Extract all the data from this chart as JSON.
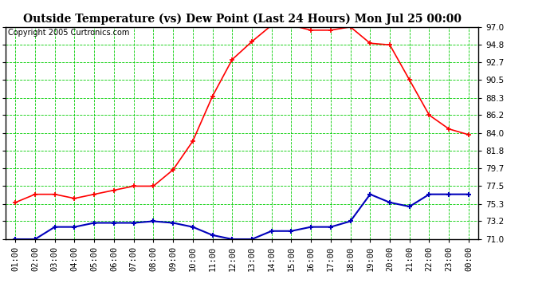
{
  "title": "Outside Temperature (vs) Dew Point (Last 24 Hours) Mon Jul 25 00:00",
  "copyright": "Copyright 2005 Curtronics.com",
  "x_labels": [
    "01:00",
    "02:00",
    "03:00",
    "04:00",
    "05:00",
    "06:00",
    "07:00",
    "08:00",
    "09:00",
    "10:00",
    "11:00",
    "12:00",
    "13:00",
    "14:00",
    "15:00",
    "16:00",
    "17:00",
    "18:00",
    "19:00",
    "20:00",
    "21:00",
    "22:00",
    "23:00",
    "00:00"
  ],
  "temp_red": [
    75.5,
    76.5,
    76.5,
    76.0,
    76.5,
    77.0,
    77.5,
    77.5,
    79.5,
    83.0,
    88.5,
    93.0,
    95.2,
    97.2,
    97.2,
    96.6,
    96.6,
    97.0,
    95.0,
    94.8,
    90.5,
    86.2,
    84.5,
    83.8
  ],
  "dew_blue": [
    71.0,
    71.0,
    72.5,
    72.5,
    73.0,
    73.0,
    73.0,
    73.2,
    73.0,
    72.5,
    71.5,
    71.0,
    71.0,
    72.0,
    72.0,
    72.5,
    72.5,
    73.2,
    76.5,
    75.5,
    75.0,
    76.5,
    76.5,
    76.5
  ],
  "ylim": [
    71.0,
    97.0
  ],
  "yticks": [
    71.0,
    73.2,
    75.3,
    77.5,
    79.7,
    81.8,
    84.0,
    86.2,
    88.3,
    90.5,
    92.7,
    94.8,
    97.0
  ],
  "bg_color": "#ffffff",
  "plot_bg": "#ffffff",
  "grid_color": "#00cc00",
  "red_color": "#ff0000",
  "blue_color": "#0000bb",
  "title_fontsize": 10,
  "copyright_fontsize": 7,
  "tick_fontsize": 7.5,
  "ytick_fontsize": 7.5
}
